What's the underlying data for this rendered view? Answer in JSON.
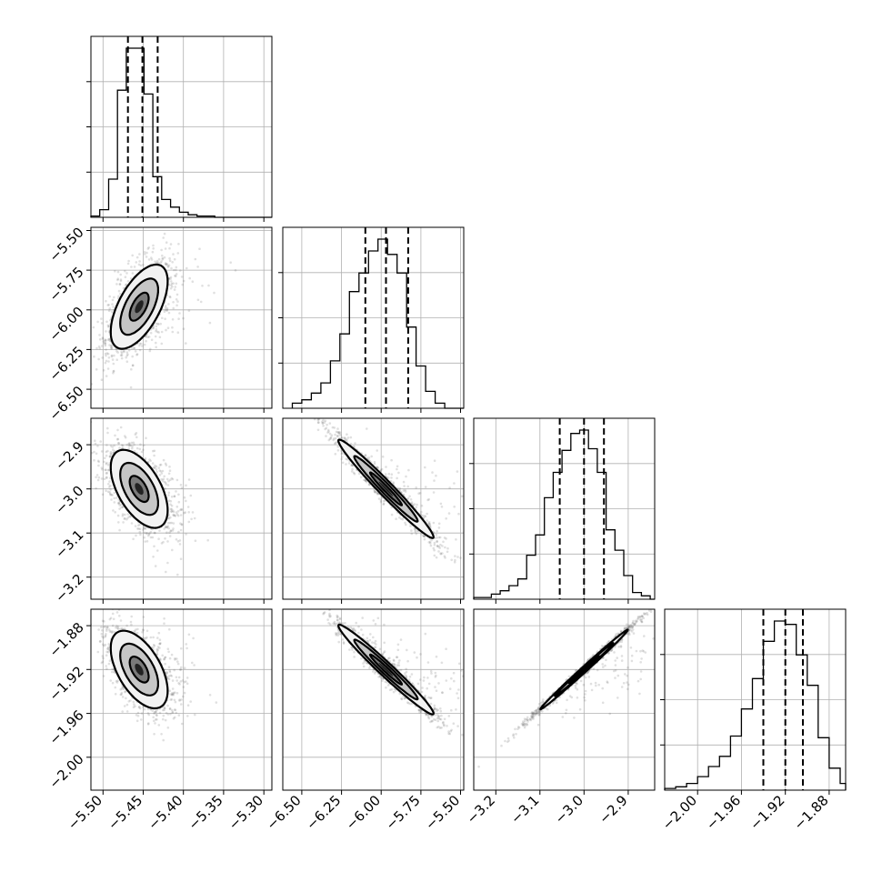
{
  "chart_data": {
    "type": "corner",
    "title": "",
    "params": [
      {
        "ticks": [
          -5.5,
          -5.45,
          -5.4,
          -5.35,
          -5.3
        ],
        "tick_labels": [
          "−5.50",
          "−5.45",
          "−5.40",
          "−5.35",
          "−5.30"
        ],
        "range": [
          -5.515,
          -5.29
        ],
        "quantiles": [
          -5.469,
          -5.451,
          -5.432
        ],
        "hist": {
          "edges": [
            -5.515,
            -5.504,
            -5.493,
            -5.482,
            -5.471,
            -5.46,
            -5.449,
            -5.438,
            -5.427,
            -5.416,
            -5.405,
            -5.394,
            -5.383,
            -5.372,
            -5.361,
            -5.35,
            -5.339
          ],
          "counts": [
            1,
            6,
            30,
            100,
            133,
            133,
            97,
            32,
            14,
            8,
            4,
            2,
            1,
            1,
            0,
            0
          ]
        }
      },
      {
        "ticks": [
          -6.5,
          -6.25,
          -6.0,
          -5.75,
          -5.5
        ],
        "tick_labels": [
          "−6.50",
          "−6.25",
          "−6.00",
          "−5.75",
          "−5.50"
        ],
        "range": [
          -6.62,
          -5.48
        ],
        "quantiles": [
          -6.1,
          -5.97,
          -5.83
        ],
        "hist": {
          "edges": [
            -6.56,
            -6.5,
            -6.44,
            -6.38,
            -6.32,
            -6.26,
            -6.2,
            -6.14,
            -6.08,
            -6.02,
            -5.96,
            -5.9,
            -5.84,
            -5.78,
            -5.72,
            -5.66,
            -5.6
          ],
          "counts": [
            3,
            5,
            9,
            15,
            28,
            44,
            69,
            80,
            93,
            100,
            91,
            80,
            48,
            25,
            10,
            3
          ]
        }
      },
      {
        "ticks": [
          -3.2,
          -3.1,
          -3.0,
          -2.9
        ],
        "tick_labels": [
          "−3.2",
          "−3.1",
          "−3.0",
          "−2.9"
        ],
        "range": [
          -3.25,
          -2.84
        ],
        "quantiles": [
          -3.055,
          -3.0,
          -2.955
        ],
        "hist": {
          "edges": [
            -3.25,
            -3.23,
            -3.21,
            -3.19,
            -3.17,
            -3.15,
            -3.13,
            -3.11,
            -3.09,
            -3.07,
            -3.05,
            -3.03,
            -3.01,
            -2.99,
            -2.97,
            -2.95,
            -2.93,
            -2.91,
            -2.89,
            -2.87,
            -2.85
          ],
          "counts": [
            1,
            1,
            3,
            5,
            8,
            12,
            26,
            38,
            60,
            75,
            88,
            98,
            100,
            89,
            75,
            41,
            29,
            14,
            4,
            2
          ]
        }
      },
      {
        "ticks": [
          -2.0,
          -1.96,
          -1.92,
          -1.88
        ],
        "tick_labels": [
          "−2.00",
          "−1.96",
          "−1.92",
          "−1.88"
        ],
        "range": [
          -2.03,
          -1.865
        ],
        "quantiles": [
          -1.94,
          -1.92,
          -1.904
        ],
        "hist": {
          "edges": [
            -2.03,
            -2.02,
            -2.01,
            -2.0,
            -1.99,
            -1.98,
            -1.97,
            -1.96,
            -1.95,
            -1.94,
            -1.93,
            -1.92,
            -1.91,
            -1.9,
            -1.89,
            -1.88,
            -1.87,
            -1.865
          ],
          "counts": [
            1,
            2,
            4,
            8,
            14,
            20,
            32,
            48,
            66,
            88,
            100,
            98,
            80,
            62,
            31,
            13,
            4
          ]
        }
      }
    ],
    "pairs": [
      {
        "x": 0,
        "y": 1,
        "center": [
          -5.455,
          -5.98
        ],
        "sd": [
          0.02,
          0.15
        ],
        "rho": 0.6,
        "contour_scale": [
          1.18,
          1.18
        ],
        "ellipses": [
          {
            "rx": 0.07,
            "ry": 0.72,
            "ang": 0
          }
        ]
      },
      {
        "x": 0,
        "y": 2,
        "center": [
          -5.455,
          -3.0
        ],
        "sd": [
          0.02,
          0.05
        ],
        "rho": -0.55,
        "contour_scale": [
          1.18,
          1.18
        ],
        "ellipses": []
      },
      {
        "x": 1,
        "y": 2,
        "center": [
          -5.97,
          -3.0
        ],
        "sd": [
          0.16,
          0.06
        ],
        "rho": -0.97,
        "contour_scale": [
          1.25,
          1.05
        ],
        "ellipses": []
      },
      {
        "x": 0,
        "y": 3,
        "center": [
          -5.455,
          -1.92
        ],
        "sd": [
          0.02,
          0.02
        ],
        "rho": -0.55,
        "contour_scale": [
          1.18,
          1.18
        ],
        "ellipses": []
      },
      {
        "x": 1,
        "y": 3,
        "center": [
          -5.97,
          -1.92
        ],
        "sd": [
          0.16,
          0.022
        ],
        "rho": -0.97,
        "contour_scale": [
          1.25,
          1.05
        ],
        "ellipses": []
      },
      {
        "x": 2,
        "y": 3,
        "center": [
          -3.0,
          -1.92
        ],
        "sd": [
          0.06,
          0.022
        ],
        "rho": 0.995,
        "contour_scale": [
          1.1,
          1.0
        ],
        "ellipses": []
      }
    ],
    "grid": true,
    "contour_levels": [
      0.5,
      1.0,
      1.5
    ],
    "colors": {
      "points": "#555555",
      "line": "#000000",
      "grid": "#b0b0b0"
    }
  }
}
